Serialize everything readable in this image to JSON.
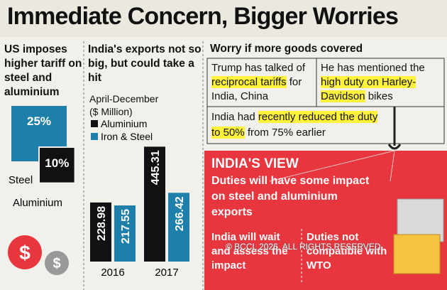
{
  "title": "Immediate Concern, Bigger Worries",
  "chart_data": [
    {
      "type": "square",
      "title": "US imposes higher tariff on steel and aluminium",
      "categories": [
        "Steel",
        "Aluminium"
      ],
      "values": [
        25,
        10
      ],
      "value_labels": [
        "25%",
        "10%"
      ],
      "colors": [
        "#1f7fab",
        "#111111"
      ]
    },
    {
      "type": "bar",
      "title": "India's exports not so big, but could take a hit",
      "subtitle": [
        "April-December",
        "($ Million)"
      ],
      "categories": [
        "2016",
        "2017"
      ],
      "series": [
        {
          "name": "Aluminium",
          "color": "#111111",
          "values": [
            228.98,
            445.31
          ]
        },
        {
          "name": "Iron & Steel",
          "color": "#1f7fab",
          "values": [
            217.55,
            266.42
          ]
        }
      ]
    }
  ],
  "worry": {
    "heading": "Worry if more goods covered",
    "boxes": [
      [
        {
          "text": "Trump has talked of ",
          "highlight": false
        },
        {
          "text": "reciprocal tariffs",
          "highlight": true
        },
        {
          "text": " for India, China",
          "highlight": false
        }
      ],
      [
        {
          "text": "He has mentioned the ",
          "highlight": false
        },
        {
          "text": "high duty on Harley-Davidson",
          "highlight": true
        },
        {
          "text": " bikes",
          "highlight": false
        }
      ],
      [
        {
          "text": "India had ",
          "highlight": false
        },
        {
          "text": "recently reduced the duty to 50%",
          "highlight": true
        },
        {
          "text": " from 75% earlier",
          "highlight": false
        }
      ]
    ]
  },
  "view": {
    "heading": "INDIA'S VIEW",
    "main": "Duties will have some impact on steel and aluminium exports",
    "left": "India will wait and assess the impact",
    "right": "Duties not compatible with WTO"
  },
  "watermark": "© BCCL 2026. ALL RIGHTS RESERVED."
}
